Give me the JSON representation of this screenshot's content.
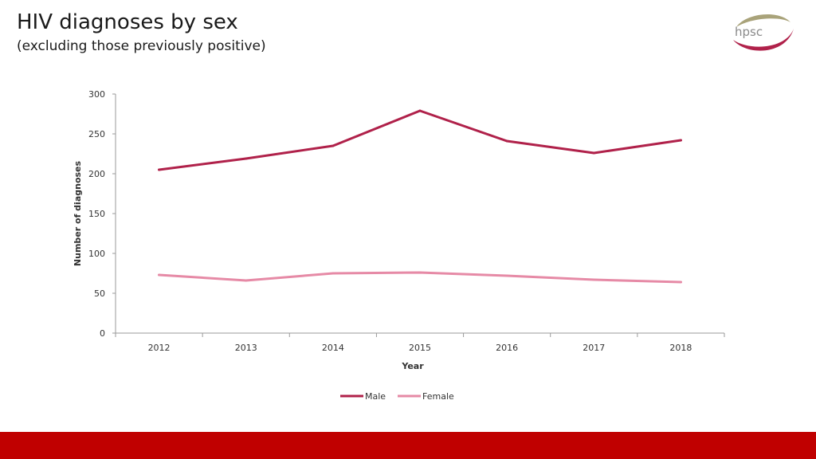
{
  "slide": {
    "title": "HIV diagnoses by sex",
    "subtitle": "(excluding those previously positive)",
    "logo_text": "hpsc",
    "footer_color": "#c00000"
  },
  "chart_data": {
    "type": "line",
    "title": "",
    "xlabel": "Year",
    "ylabel": "Number of diagnoses",
    "categories": [
      "2012",
      "2013",
      "2014",
      "2015",
      "2016",
      "2017",
      "2018"
    ],
    "yticks": [
      "0",
      "50",
      "100",
      "150",
      "200",
      "250",
      "300"
    ],
    "ylim": [
      0,
      300
    ],
    "grid": false,
    "legend_position": "bottom",
    "series": [
      {
        "name": "Male",
        "color": "#b0214a",
        "values": [
          205,
          219,
          235,
          279,
          241,
          226,
          242
        ]
      },
      {
        "name": "Female",
        "color": "#e68aa6",
        "values": [
          73,
          66,
          75,
          76,
          72,
          67,
          64
        ]
      }
    ]
  }
}
